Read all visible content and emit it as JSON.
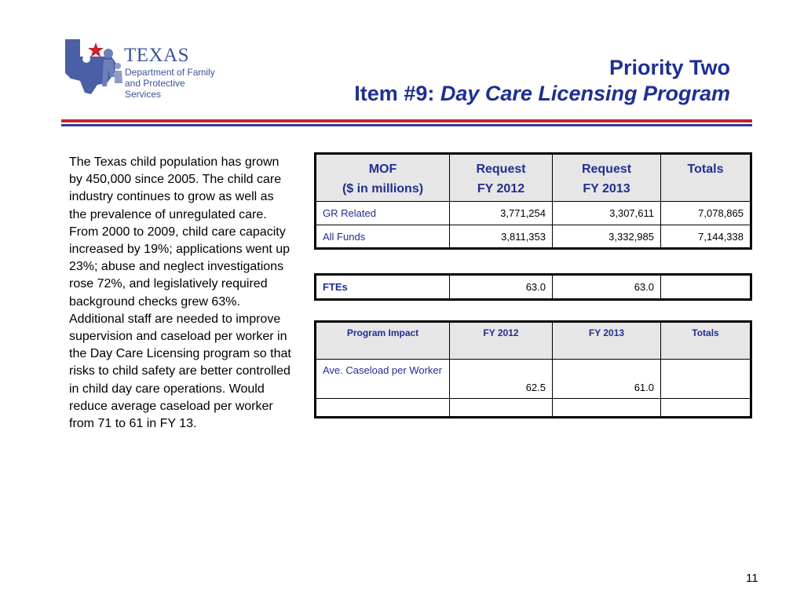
{
  "logo": {
    "name": "TEXAS",
    "subtitle": "Department of Family\nand Protective Services",
    "colors": {
      "blue": "#39539a",
      "red": "#c8232c"
    }
  },
  "header": {
    "title_line1": "Priority Two",
    "title_prefix": "Item #9:",
    "title_italic": "Day Care Licensing Program"
  },
  "body_text": "The Texas child population has grown by 450,000 since 2005.  The child care industry continues to grow as well as the prevalence of unregulated care.   From 2000 to 2009, child care capacity increased by 19%; applications went up 23%; abuse and neglect investigations rose 72%, and legislatively required background checks grew 63%.  Additional staff are needed to improve supervision and caseload per worker in the Day Care Licensing program so that risks to child safety are better controlled in child day care operations. Would reduce average caseload per worker from 71 to 61 in FY 13.",
  "funding_table": {
    "headers": [
      {
        "line1": "MOF",
        "line2": "($ in millions)"
      },
      {
        "line1": "Request",
        "line2": "FY 2012"
      },
      {
        "line1": "Request",
        "line2": "FY 2013"
      },
      {
        "line1": "Totals",
        "line2": ""
      }
    ],
    "rows": [
      {
        "label": "GR Related",
        "fy2012": "3,771,254",
        "fy2013": "3,307,611",
        "total": "7,078,865"
      },
      {
        "label": "All Funds",
        "fy2012": "3,811,353",
        "fy2013": "3,332,985",
        "total": "7,144,338"
      }
    ]
  },
  "fte_table": {
    "label": "FTEs",
    "fy2012": "63.0",
    "fy2013": "63.0",
    "total": ""
  },
  "impact_table": {
    "headers": [
      "Program Impact",
      "FY 2012",
      "FY 2013",
      "Totals"
    ],
    "rows": [
      {
        "label": "Ave. Caseload per Worker",
        "fy2012": "62.5",
        "fy2013": "61.0",
        "total": ""
      },
      {
        "label": "",
        "fy2012": "",
        "fy2013": "",
        "total": ""
      }
    ]
  },
  "page_number": "11"
}
